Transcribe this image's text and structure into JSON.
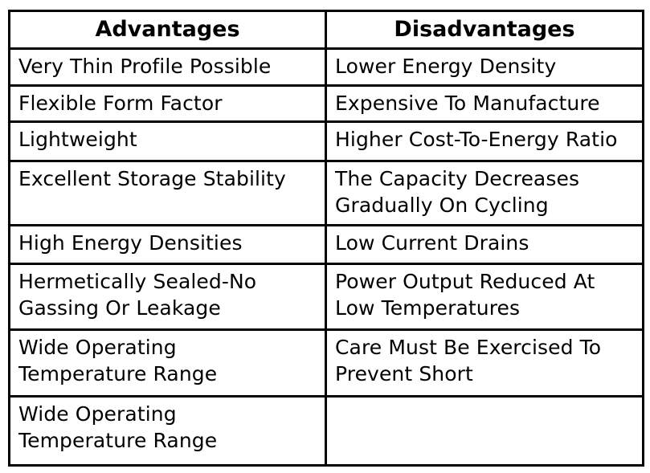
{
  "table": {
    "headers": [
      "Advantages",
      "Disadvantages"
    ],
    "rows": [
      [
        "Very Thin Profile Possible",
        "Lower Energy Density"
      ],
      [
        "Flexible Form Factor",
        "Expensive To Manufacture"
      ],
      [
        "Lightweight",
        "Higher Cost-To-Energy Ratio"
      ],
      [
        "Excellent Storage Stability",
        "The Capacity Decreases\nGradually On Cycling"
      ],
      [
        "High Energy Densities",
        "Low Current Drains"
      ],
      [
        "Hermetically Sealed-No\nGassing Or Leakage",
        "Power Output Reduced At\nLow Temperatures"
      ],
      [
        "Wide Operating\nTemperature Range",
        "Care Must Be Exercised To\nPrevent Short"
      ],
      [
        "Wide Operating\nTemperature Range",
        ""
      ]
    ]
  }
}
